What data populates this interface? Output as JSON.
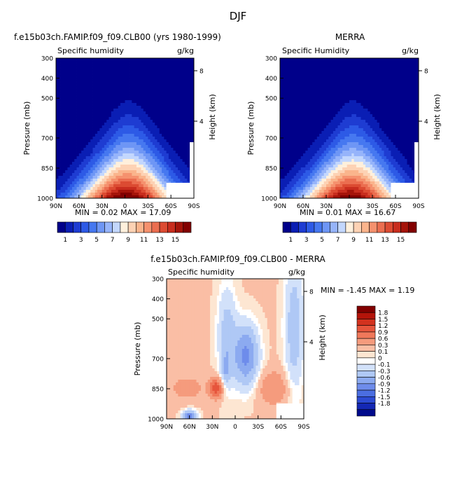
{
  "figure_title": "DJF",
  "chart_data": [
    {
      "type": "heatmap",
      "title": "f.e15b03ch.FAMIP.f09_f09.CLB00 (yrs 1980-1999)",
      "field_label": "Specific humidity",
      "units": "g/kg",
      "ylabel": "Pressure (mb)",
      "y2label": "Height (km)",
      "x_ticks": [
        "90N",
        "60N",
        "30N",
        "0",
        "30S",
        "60S",
        "90S"
      ],
      "y_ticks": [
        "300",
        "400",
        "500",
        "700",
        "850",
        "1000"
      ],
      "y2_ticks": [
        "8",
        "4"
      ],
      "stats": "MIN =   0.02  MAX =   17.09",
      "min": 0.02,
      "max": 17.09
    },
    {
      "type": "heatmap",
      "title": "MERRA",
      "field_label": "Specific Humidity",
      "units": "g/kg",
      "ylabel": "Pressure (mb)",
      "y2label": "Height (km)",
      "x_ticks": [
        "90N",
        "60N",
        "30N",
        "0",
        "30S",
        "60S",
        "90S"
      ],
      "y_ticks": [
        "300",
        "400",
        "500",
        "700",
        "850",
        "1000"
      ],
      "y2_ticks": [
        "8",
        "4"
      ],
      "stats": "MIN =   0.01  MAX =   16.67",
      "min": 0.01,
      "max": 16.67
    },
    {
      "type": "heatmap",
      "title": "f.e15b03ch.FAMIP.f09_f09.CLB00 - MERRA",
      "field_label": "Specific humidity",
      "units": "g/kg",
      "ylabel": "Pressure (mb)",
      "y2label": "Height (km)",
      "x_ticks": [
        "90N",
        "60N",
        "30N",
        "0",
        "30S",
        "60S",
        "90S"
      ],
      "y_ticks": [
        "300",
        "400",
        "500",
        "700",
        "850",
        "1000"
      ],
      "y2_ticks": [
        "8",
        "4"
      ],
      "stats": "MIN =   -1.45   MAX =    1.19",
      "min": -1.45,
      "max": 1.19
    }
  ],
  "colorbar_full": {
    "labels": [
      "1",
      "3",
      "5",
      "7",
      "9",
      "11",
      "13",
      "15"
    ],
    "colors": [
      "#00008a",
      "#0a1eb4",
      "#1e3cd2",
      "#2d5ae6",
      "#4678f0",
      "#6e96f5",
      "#96b4fa",
      "#c3d7fd",
      "#fff0dc",
      "#fdd2b4",
      "#fab48c",
      "#f5916e",
      "#eb6e50",
      "#dc4b32",
      "#c82d1e",
      "#a5140a",
      "#820000"
    ]
  },
  "colorbar_diff": {
    "labels": [
      "1.8",
      "1.5",
      "1.2",
      "0.9",
      "0.6",
      "0.3",
      "0.1",
      "0",
      "-0.1",
      "-0.3",
      "-0.6",
      "-0.9",
      "-1.2",
      "-1.5",
      "-1.8"
    ],
    "colors": [
      "#820000",
      "#b4140a",
      "#d2321e",
      "#e6553c",
      "#f0785a",
      "#f59b7d",
      "#fabea5",
      "#fde6d2",
      "#ffffff",
      "#d2e1fa",
      "#afc8f5",
      "#8caaf0",
      "#6e8ceb",
      "#4b6ee1",
      "#2d4bd2",
      "#1428b4",
      "#000a8c"
    ]
  }
}
